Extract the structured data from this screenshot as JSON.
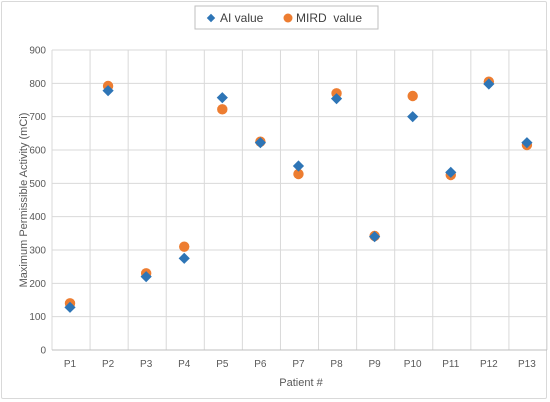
{
  "chart_data": {
    "type": "scatter",
    "xlabel": "Patient #",
    "ylabel": "Maximum Permissible Activity (mCi)",
    "categories": [
      "P1",
      "P2",
      "P3",
      "P4",
      "P5",
      "P6",
      "P7",
      "P8",
      "P9",
      "P10",
      "P11",
      "P12",
      "P13"
    ],
    "ylim": [
      0,
      900
    ],
    "y_ticks": [
      "0",
      "100",
      "200",
      "300",
      "400",
      "500",
      "600",
      "700",
      "800",
      "900"
    ],
    "grid": "vertical-and-horizontal",
    "legend_position": "top",
    "series": [
      {
        "name": "AI value",
        "marker": "diamond",
        "color": "#2E75B6",
        "values": [
          128,
          778,
          220,
          275,
          757,
          622,
          552,
          754,
          340,
          700,
          533,
          798,
          622
        ]
      },
      {
        "name": "MIRD  value",
        "marker": "circle",
        "color": "#ED7D31",
        "values": [
          140,
          792,
          230,
          310,
          722,
          625,
          528,
          770,
          342,
          762,
          525,
          805,
          615
        ]
      }
    ]
  }
}
